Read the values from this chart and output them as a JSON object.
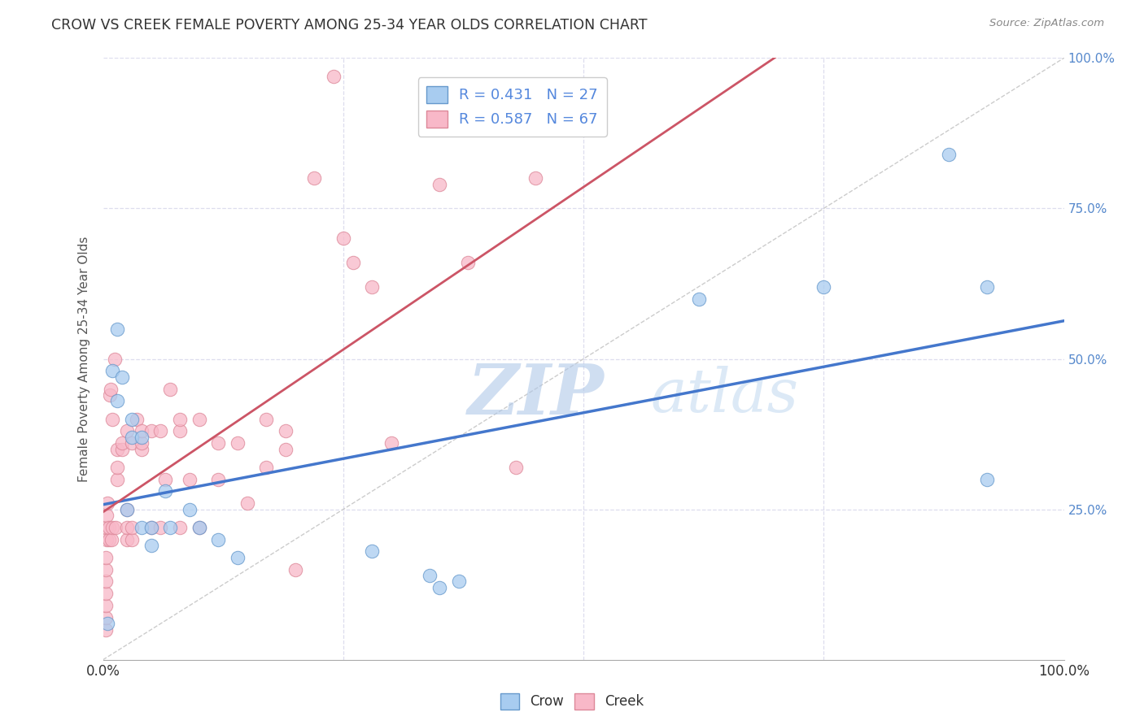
{
  "title": "CROW VS CREEK FEMALE POVERTY AMONG 25-34 YEAR OLDS CORRELATION CHART",
  "source": "Source: ZipAtlas.com",
  "ylabel": "Female Poverty Among 25-34 Year Olds",
  "crow_R": 0.431,
  "crow_N": 27,
  "creek_R": 0.587,
  "creek_N": 67,
  "crow_color": "#A8CCF0",
  "creek_color": "#F8B8C8",
  "crow_edge_color": "#6699CC",
  "creek_edge_color": "#DD8899",
  "crow_line_color": "#4477CC",
  "creek_line_color": "#CC5566",
  "diagonal_color": "#CCCCCC",
  "background_color": "#FFFFFF",
  "grid_color": "#DDDDEE",
  "watermark_zip_color": "#AABBDD",
  "watermark_atlas_color": "#BBCCEE",
  "legend_text_color": "#5588DD",
  "crow_points": [
    [
      0.005,
      0.06
    ],
    [
      0.01,
      0.48
    ],
    [
      0.015,
      0.55
    ],
    [
      0.015,
      0.43
    ],
    [
      0.02,
      0.47
    ],
    [
      0.025,
      0.25
    ],
    [
      0.03,
      0.4
    ],
    [
      0.03,
      0.37
    ],
    [
      0.04,
      0.37
    ],
    [
      0.04,
      0.22
    ],
    [
      0.05,
      0.22
    ],
    [
      0.05,
      0.19
    ],
    [
      0.065,
      0.28
    ],
    [
      0.07,
      0.22
    ],
    [
      0.09,
      0.25
    ],
    [
      0.1,
      0.22
    ],
    [
      0.12,
      0.2
    ],
    [
      0.14,
      0.17
    ],
    [
      0.28,
      0.18
    ],
    [
      0.34,
      0.14
    ],
    [
      0.35,
      0.12
    ],
    [
      0.37,
      0.13
    ],
    [
      0.62,
      0.6
    ],
    [
      0.75,
      0.62
    ],
    [
      0.88,
      0.84
    ],
    [
      0.92,
      0.62
    ],
    [
      0.92,
      0.3
    ]
  ],
  "creek_points": [
    [
      0.003,
      0.05
    ],
    [
      0.003,
      0.07
    ],
    [
      0.003,
      0.09
    ],
    [
      0.003,
      0.11
    ],
    [
      0.003,
      0.13
    ],
    [
      0.003,
      0.15
    ],
    [
      0.003,
      0.17
    ],
    [
      0.004,
      0.2
    ],
    [
      0.004,
      0.22
    ],
    [
      0.004,
      0.24
    ],
    [
      0.005,
      0.26
    ],
    [
      0.006,
      0.2
    ],
    [
      0.006,
      0.22
    ],
    [
      0.007,
      0.44
    ],
    [
      0.008,
      0.45
    ],
    [
      0.009,
      0.2
    ],
    [
      0.01,
      0.22
    ],
    [
      0.01,
      0.4
    ],
    [
      0.012,
      0.5
    ],
    [
      0.013,
      0.22
    ],
    [
      0.015,
      0.3
    ],
    [
      0.015,
      0.32
    ],
    [
      0.015,
      0.35
    ],
    [
      0.02,
      0.35
    ],
    [
      0.02,
      0.36
    ],
    [
      0.025,
      0.2
    ],
    [
      0.025,
      0.22
    ],
    [
      0.025,
      0.25
    ],
    [
      0.025,
      0.38
    ],
    [
      0.03,
      0.2
    ],
    [
      0.03,
      0.22
    ],
    [
      0.03,
      0.36
    ],
    [
      0.035,
      0.4
    ],
    [
      0.04,
      0.35
    ],
    [
      0.04,
      0.36
    ],
    [
      0.04,
      0.38
    ],
    [
      0.05,
      0.22
    ],
    [
      0.05,
      0.38
    ],
    [
      0.06,
      0.22
    ],
    [
      0.06,
      0.38
    ],
    [
      0.065,
      0.3
    ],
    [
      0.07,
      0.45
    ],
    [
      0.08,
      0.22
    ],
    [
      0.08,
      0.38
    ],
    [
      0.08,
      0.4
    ],
    [
      0.09,
      0.3
    ],
    [
      0.1,
      0.22
    ],
    [
      0.1,
      0.4
    ],
    [
      0.12,
      0.3
    ],
    [
      0.12,
      0.36
    ],
    [
      0.14,
      0.36
    ],
    [
      0.15,
      0.26
    ],
    [
      0.17,
      0.32
    ],
    [
      0.17,
      0.4
    ],
    [
      0.19,
      0.35
    ],
    [
      0.19,
      0.38
    ],
    [
      0.2,
      0.15
    ],
    [
      0.22,
      0.8
    ],
    [
      0.24,
      0.97
    ],
    [
      0.25,
      0.7
    ],
    [
      0.26,
      0.66
    ],
    [
      0.28,
      0.62
    ],
    [
      0.3,
      0.36
    ],
    [
      0.35,
      0.79
    ],
    [
      0.38,
      0.66
    ],
    [
      0.43,
      0.32
    ],
    [
      0.45,
      0.8
    ]
  ]
}
